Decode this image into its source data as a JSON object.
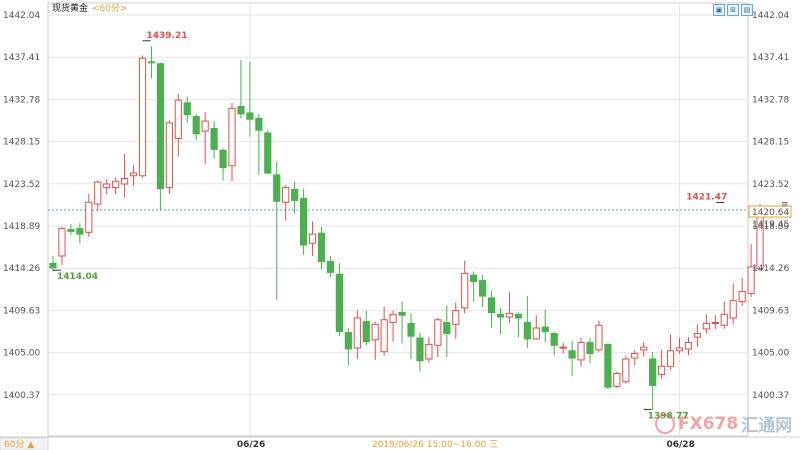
{
  "header": {
    "title": "现货黄金",
    "period": "<60分>",
    "buttons": [
      "▣",
      "⊞",
      "▤"
    ]
  },
  "footer": {
    "period_selector": "60分 ▲",
    "time_info": "2019/06/26 15:00~16:00 三"
  },
  "watermark": {
    "brand": "FX678",
    "cn": "汇通网"
  },
  "colors": {
    "up": "#d9534f",
    "down": "#4caf50",
    "grid": "#e6e6e6",
    "current_line": "#5aa0d8",
    "current_box": "#e8a03a"
  },
  "chart_data": {
    "type": "candlestick",
    "title": "现货黄金",
    "y_ticks": [
      "1442.04",
      "1437.41",
      "1432.78",
      "1428.15",
      "1423.52",
      "1418.89",
      "1414.26",
      "1409.63",
      "1405.00",
      "1400.37"
    ],
    "x_ticks": [
      {
        "label": "06/26",
        "index": 22
      },
      {
        "label": "06/28",
        "index": 70
      }
    ],
    "annotations": {
      "high": {
        "label": "1439.21",
        "value": 1439.21,
        "index": 10
      },
      "low_left": {
        "label": "1414.04",
        "value": 1414.04,
        "index": 0
      },
      "low": {
        "label": "1398.77",
        "value": 1398.77,
        "index": 66
      },
      "recent_high": {
        "label": "1421.47",
        "value": 1421.47,
        "index": 75
      }
    },
    "current_price": {
      "label": "1420.64",
      "value": 1420.64
    },
    "crosshair_price": {
      "label": "1419.45",
      "value": 1419.45
    },
    "candles": [
      [
        1414.8,
        1415.6,
        1413.9,
        1414.3
      ],
      [
        1415.6,
        1418.8,
        1414.6,
        1418.6
      ],
      [
        1418.5,
        1419.1,
        1417.9,
        1418.3
      ],
      [
        1418.6,
        1419.2,
        1417.0,
        1418.0
      ],
      [
        1418.2,
        1422.4,
        1417.7,
        1421.5
      ],
      [
        1421.3,
        1423.9,
        1420.5,
        1423.7
      ],
      [
        1423.1,
        1424.0,
        1422.4,
        1423.5
      ],
      [
        1423.1,
        1424.2,
        1422.4,
        1423.8
      ],
      [
        1423.5,
        1426.8,
        1422.0,
        1424.1
      ],
      [
        1424.4,
        1425.6,
        1423.3,
        1424.7
      ],
      [
        1424.4,
        1437.6,
        1424.2,
        1437.3
      ],
      [
        1436.9,
        1438.6,
        1435.1,
        1436.8
      ],
      [
        1436.7,
        1436.8,
        1420.6,
        1423.0
      ],
      [
        1423.1,
        1430.5,
        1422.4,
        1430.2
      ],
      [
        1428.5,
        1433.4,
        1426.5,
        1432.7
      ],
      [
        1432.4,
        1433.1,
        1430.2,
        1431.1
      ],
      [
        1430.9,
        1431.2,
        1428.3,
        1429.0
      ],
      [
        1429.3,
        1431.4,
        1425.7,
        1430.4
      ],
      [
        1429.6,
        1430.4,
        1426.3,
        1427.3
      ],
      [
        1427.2,
        1427.4,
        1423.9,
        1425.3
      ],
      [
        1425.5,
        1432.4,
        1423.8,
        1431.8
      ],
      [
        1432.0,
        1437.1,
        1430.7,
        1431.2
      ],
      [
        1431.3,
        1436.9,
        1428.7,
        1430.6
      ],
      [
        1430.7,
        1431.2,
        1424.5,
        1429.4
      ],
      [
        1429.1,
        1429.4,
        1424.6,
        1424.7
      ],
      [
        1424.5,
        1426.0,
        1410.8,
        1421.6
      ],
      [
        1421.5,
        1423.4,
        1419.5,
        1423.1
      ],
      [
        1422.9,
        1423.8,
        1420.3,
        1421.7
      ],
      [
        1421.9,
        1423.0,
        1415.7,
        1416.8
      ],
      [
        1417.0,
        1419.4,
        1415.6,
        1418.0
      ],
      [
        1418.1,
        1418.8,
        1414.1,
        1415.0
      ],
      [
        1415.0,
        1415.6,
        1413.3,
        1413.8
      ],
      [
        1413.6,
        1414.8,
        1406.8,
        1407.3
      ],
      [
        1407.2,
        1407.7,
        1403.6,
        1405.4
      ],
      [
        1405.5,
        1409.6,
        1404.3,
        1408.8
      ],
      [
        1408.4,
        1409.6,
        1405.8,
        1406.2
      ],
      [
        1406.4,
        1408.4,
        1404.2,
        1408.1
      ],
      [
        1405.1,
        1410.0,
        1404.7,
        1408.6
      ],
      [
        1408.3,
        1409.6,
        1406.2,
        1409.2
      ],
      [
        1409.4,
        1410.6,
        1406.0,
        1409.1
      ],
      [
        1408.2,
        1409.3,
        1404.3,
        1406.8
      ],
      [
        1406.6,
        1407.2,
        1402.9,
        1404.1
      ],
      [
        1404.3,
        1406.7,
        1403.9,
        1405.9
      ],
      [
        1405.8,
        1408.8,
        1404.5,
        1408.6
      ],
      [
        1408.3,
        1410.2,
        1404.5,
        1407.1
      ],
      [
        1408.1,
        1410.5,
        1406.5,
        1409.6
      ],
      [
        1409.9,
        1415.1,
        1409.3,
        1413.7
      ],
      [
        1413.5,
        1413.9,
        1410.6,
        1412.8
      ],
      [
        1412.9,
        1413.5,
        1410.0,
        1411.2
      ],
      [
        1411.0,
        1411.8,
        1407.7,
        1409.4
      ],
      [
        1409.2,
        1409.9,
        1407.0,
        1408.9
      ],
      [
        1408.9,
        1411.6,
        1408.2,
        1409.3
      ],
      [
        1409.2,
        1409.4,
        1406.7,
        1408.8
      ],
      [
        1408.3,
        1411.2,
        1405.5,
        1406.5
      ],
      [
        1406.5,
        1409.1,
        1406.4,
        1407.7
      ],
      [
        1407.8,
        1409.7,
        1406.1,
        1407.3
      ],
      [
        1407.1,
        1407.3,
        1404.7,
        1405.8
      ],
      [
        1405.6,
        1406.1,
        1404.9,
        1405.6
      ],
      [
        1405.2,
        1406.3,
        1402.4,
        1404.4
      ],
      [
        1404.2,
        1406.6,
        1403.5,
        1406.1
      ],
      [
        1406.1,
        1406.6,
        1403.8,
        1404.9
      ],
      [
        1405.3,
        1408.5,
        1405.1,
        1408.0
      ],
      [
        1405.9,
        1406.0,
        1401.0,
        1401.2
      ],
      [
        1401.3,
        1402.9,
        1401.1,
        1402.7
      ],
      [
        1401.8,
        1404.6,
        1401.6,
        1404.3
      ],
      [
        1404.4,
        1405.3,
        1403.6,
        1404.9
      ],
      [
        1405.3,
        1406.1,
        1404.6,
        1405.6
      ],
      [
        1404.3,
        1405.1,
        1398.7,
        1401.4
      ],
      [
        1402.6,
        1405.3,
        1402.1,
        1403.5
      ],
      [
        1403.5,
        1407.0,
        1403.1,
        1405.2
      ],
      [
        1405.2,
        1406.6,
        1404.9,
        1405.5
      ],
      [
        1405.4,
        1406.7,
        1404.7,
        1406.1
      ],
      [
        1406.7,
        1408.1,
        1405.6,
        1407.1
      ],
      [
        1407.6,
        1409.2,
        1407.1,
        1408.2
      ],
      [
        1408.2,
        1409.1,
        1407.6,
        1408.3
      ],
      [
        1408.0,
        1410.6,
        1407.6,
        1409.2
      ],
      [
        1408.8,
        1412.6,
        1408.1,
        1410.7
      ],
      [
        1410.6,
        1413.2,
        1410.1,
        1411.7
      ],
      [
        1411.5,
        1416.9,
        1411.1,
        1414.4
      ],
      [
        1414.2,
        1421.3,
        1413.9,
        1420.6
      ]
    ]
  }
}
